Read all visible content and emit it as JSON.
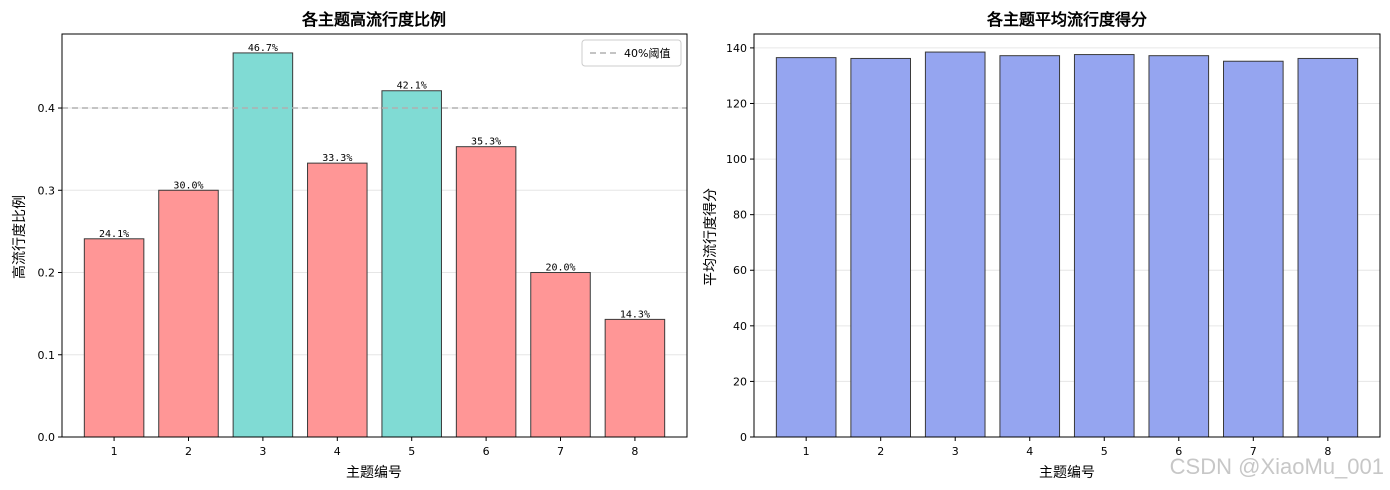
{
  "watermark": "CSDN @XiaoMu_001",
  "chart_data": [
    {
      "type": "bar",
      "title": "各主题高流行度比例",
      "xlabel": "主题编号",
      "ylabel": "高流行度比例",
      "categories": [
        "1",
        "2",
        "3",
        "4",
        "5",
        "6",
        "7",
        "8"
      ],
      "values": [
        0.241,
        0.3,
        0.467,
        0.333,
        0.421,
        0.353,
        0.2,
        0.143
      ],
      "data_labels": [
        "24.1%",
        "30.0%",
        "46.7%",
        "33.3%",
        "42.1%",
        "35.3%",
        "20.0%",
        "14.3%"
      ],
      "ylim": [
        0,
        0.49
      ],
      "yticks": [
        0.0,
        0.1,
        0.2,
        0.3,
        0.4
      ],
      "ytick_labels": [
        "0.0",
        "0.1",
        "0.2",
        "0.3",
        "0.4"
      ],
      "threshold": {
        "value": 0.4,
        "label": "40%阈值",
        "color": "#b0b0b0"
      },
      "colors": {
        "above": "#80dbd4",
        "below": "#ff9696"
      },
      "grid": "y",
      "legend": "top-right"
    },
    {
      "type": "bar",
      "title": "各主题平均流行度得分",
      "xlabel": "主题编号",
      "ylabel": "平均流行度得分",
      "categories": [
        "1",
        "2",
        "3",
        "4",
        "5",
        "6",
        "7",
        "8"
      ],
      "values": [
        136.5,
        136.2,
        138.5,
        137.2,
        137.6,
        137.2,
        135.2,
        136.2
      ],
      "ylim": [
        0,
        145
      ],
      "yticks": [
        0,
        20,
        40,
        60,
        80,
        100,
        120,
        140
      ],
      "ytick_labels": [
        "0",
        "20",
        "40",
        "60",
        "80",
        "100",
        "120",
        "140"
      ],
      "colors": {
        "bar": "#95a5f0"
      },
      "grid": "y"
    }
  ]
}
